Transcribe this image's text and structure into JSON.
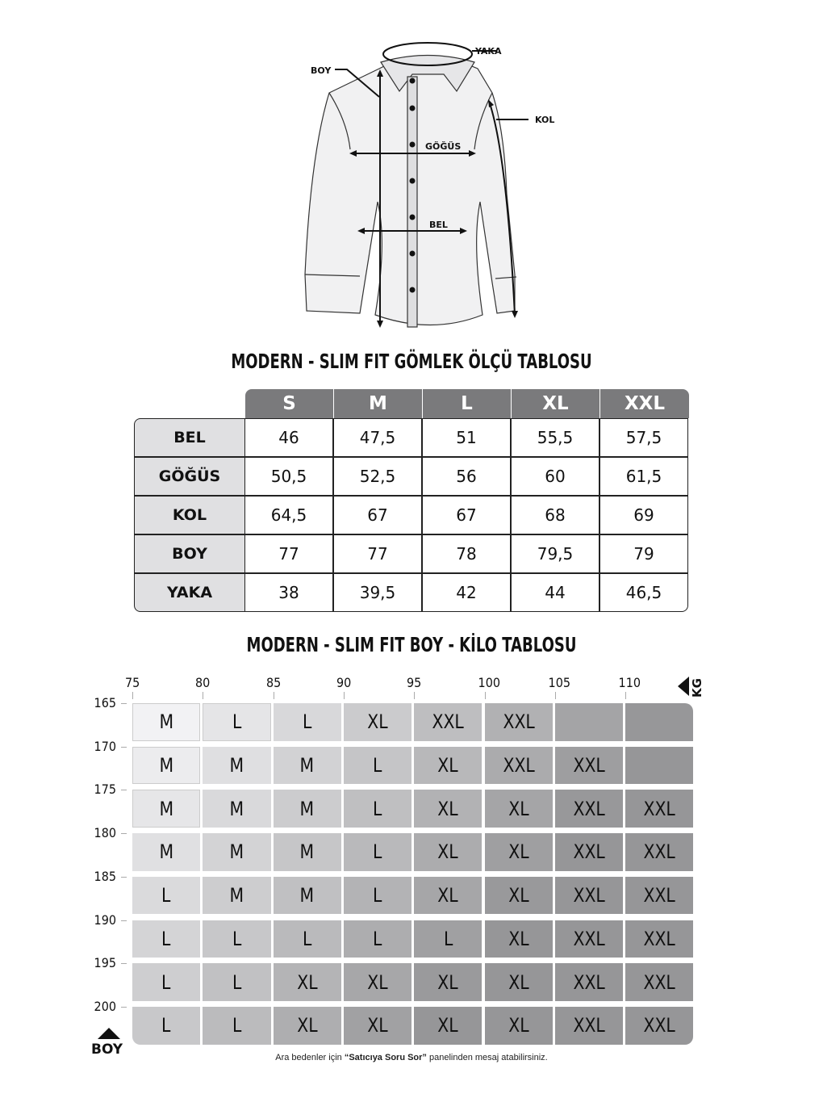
{
  "diagram": {
    "labels": {
      "yaka": "YAKA",
      "boy": "BOY",
      "kol": "KOL",
      "gogus": "GÖĞÜS",
      "bel": "BEL"
    }
  },
  "size_table": {
    "title": "MODERN - SLIM FIT GÖMLEK ÖLÇÜ TABLOSU",
    "columns": [
      "S",
      "M",
      "L",
      "XL",
      "XXL"
    ],
    "rows": [
      {
        "label": "BEL",
        "values": [
          "46",
          "47,5",
          "51",
          "55,5",
          "57,5"
        ]
      },
      {
        "label": "GÖĞÜS",
        "values": [
          "50,5",
          "52,5",
          "56",
          "60",
          "61,5"
        ]
      },
      {
        "label": "KOL",
        "values": [
          "64,5",
          "67",
          "67",
          "68",
          "69"
        ]
      },
      {
        "label": "BOY",
        "values": [
          "77",
          "77",
          "78",
          "79,5",
          "79"
        ]
      },
      {
        "label": "YAKA",
        "values": [
          "38",
          "39,5",
          "42",
          "44",
          "46,5"
        ]
      }
    ]
  },
  "fit_table": {
    "title": "MODERN - SLIM FIT BOY - KİLO TABLOSU",
    "kg_label": "KG",
    "boy_label": "BOY",
    "kg_ticks": [
      "75",
      "80",
      "85",
      "90",
      "95",
      "100",
      "105",
      "110"
    ],
    "boy_ticks": [
      "165",
      "170",
      "175",
      "180",
      "185",
      "190",
      "195",
      "200"
    ],
    "rows": [
      [
        "M",
        "L",
        "L",
        "XL",
        "XXL",
        "XXL",
        "",
        ""
      ],
      [
        "M",
        "M",
        "M",
        "L",
        "XL",
        "XXL",
        "XXL",
        ""
      ],
      [
        "M",
        "M",
        "M",
        "L",
        "XL",
        "XL",
        "XXL",
        "XXL"
      ],
      [
        "M",
        "M",
        "M",
        "L",
        "XL",
        "XL",
        "XXL",
        "XXL"
      ],
      [
        "L",
        "M",
        "M",
        "L",
        "XL",
        "XL",
        "XXL",
        "XXL"
      ],
      [
        "L",
        "L",
        "L",
        "L",
        "L",
        "XL",
        "XXL",
        "XXL"
      ],
      [
        "L",
        "L",
        "XL",
        "XL",
        "XL",
        "XL",
        "XXL",
        "XXL"
      ],
      [
        "L",
        "L",
        "XL",
        "XL",
        "XL",
        "XL",
        "XXL",
        "XXL"
      ]
    ]
  },
  "footer": {
    "pre": "Ara bedenler için ",
    "bold": "“Satıcıya Soru Sor”",
    "post": " panelinden mesaj atabilirsiniz."
  }
}
